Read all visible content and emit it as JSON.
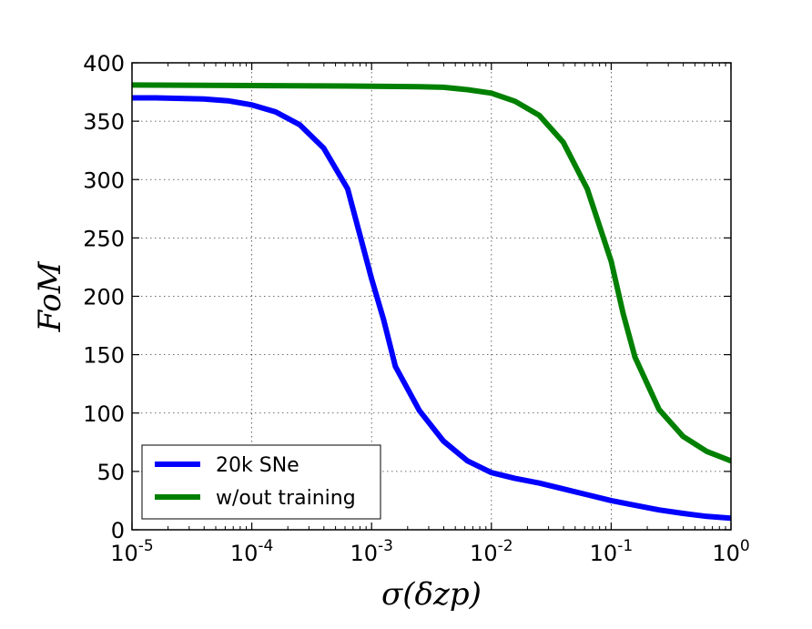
{
  "chart_data": {
    "type": "line",
    "title": "",
    "xlabel": "σ(δzp)",
    "ylabel": "FoM",
    "xscale": "log",
    "xlim": [
      1e-05,
      1
    ],
    "ylim": [
      0,
      400
    ],
    "x_ticks": [
      {
        "value": 1e-05,
        "base": "10",
        "exp": "-5"
      },
      {
        "value": 0.0001,
        "base": "10",
        "exp": "-4"
      },
      {
        "value": 0.001,
        "base": "10",
        "exp": "-3"
      },
      {
        "value": 0.01,
        "base": "10",
        "exp": "-2"
      },
      {
        "value": 0.1,
        "base": "10",
        "exp": "-1"
      },
      {
        "value": 1,
        "base": "10",
        "exp": "0"
      }
    ],
    "y_ticks": [
      0,
      50,
      100,
      150,
      200,
      250,
      300,
      350,
      400
    ],
    "grid": true,
    "legend_position": "lower-left",
    "series": [
      {
        "name": "20k SNe",
        "color": "#0000ff",
        "points": [
          [
            1e-05,
            370
          ],
          [
            1.58e-05,
            370
          ],
          [
            2.51e-05,
            369.5
          ],
          [
            3.98e-05,
            369
          ],
          [
            6.31e-05,
            367.5
          ],
          [
            0.0001,
            364
          ],
          [
            0.000158,
            358
          ],
          [
            0.000251,
            347
          ],
          [
            0.000398,
            327
          ],
          [
            0.000631,
            292
          ],
          [
            0.001,
            215
          ],
          [
            0.00126,
            180
          ],
          [
            0.00158,
            140
          ],
          [
            0.00251,
            102
          ],
          [
            0.00398,
            76
          ],
          [
            0.00631,
            59
          ],
          [
            0.01,
            49
          ],
          [
            0.0158,
            44
          ],
          [
            0.0251,
            40
          ],
          [
            0.0398,
            35
          ],
          [
            0.0631,
            30
          ],
          [
            0.1,
            25
          ],
          [
            0.158,
            21
          ],
          [
            0.251,
            17
          ],
          [
            0.398,
            14
          ],
          [
            0.631,
            11.5
          ],
          [
            1,
            10
          ]
        ]
      },
      {
        "name": "w/out training",
        "color": "#008000",
        "points": [
          [
            1e-05,
            381
          ],
          [
            0.0001,
            380.5
          ],
          [
            0.001,
            380
          ],
          [
            0.00251,
            379.5
          ],
          [
            0.00398,
            379
          ],
          [
            0.00631,
            377
          ],
          [
            0.01,
            374
          ],
          [
            0.0158,
            367
          ],
          [
            0.0251,
            355
          ],
          [
            0.0398,
            332
          ],
          [
            0.0631,
            292
          ],
          [
            0.1,
            230
          ],
          [
            0.126,
            185
          ],
          [
            0.158,
            148
          ],
          [
            0.251,
            103
          ],
          [
            0.398,
            80
          ],
          [
            0.631,
            67
          ],
          [
            1,
            59
          ],
          [
            1.26,
            56
          ]
        ]
      }
    ]
  }
}
